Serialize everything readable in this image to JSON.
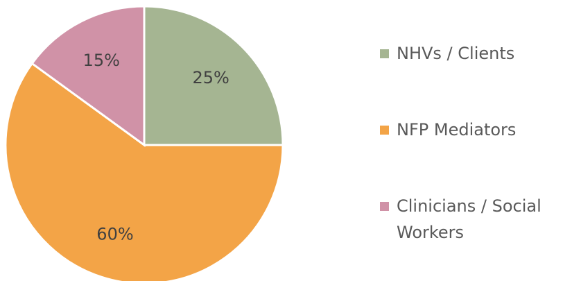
{
  "chart_data": {
    "type": "pie",
    "categories": [
      "NHVs / Clients",
      "NFP Mediators",
      "Clinicians / Social Workers"
    ],
    "values": [
      25,
      60,
      15
    ],
    "value_labels": [
      "25%",
      "60%",
      "15%"
    ],
    "colors": [
      "#a5b592",
      "#f3a447",
      "#d092a7"
    ],
    "legend": "right"
  }
}
